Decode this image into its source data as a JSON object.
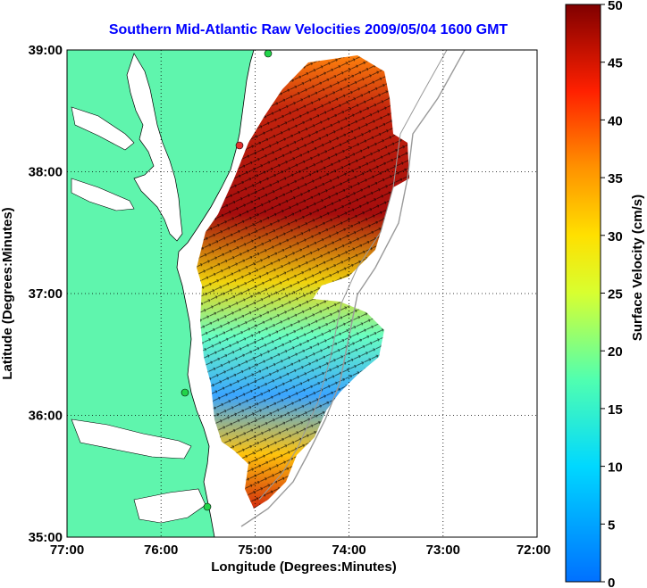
{
  "title": "Southern Mid-Atlantic Raw Velocities 2009/05/04 1600 GMT",
  "x_axis": {
    "label": "Longitude (Degrees:Minutes)",
    "ticks": [
      "77:00",
      "76:00",
      "75:00",
      "74:00",
      "73:00",
      "72:00"
    ]
  },
  "y_axis": {
    "label": "Latitude (Degrees:Minutes)",
    "ticks": [
      "39:00",
      "38:00",
      "37:00",
      "36:00",
      "35:00"
    ]
  },
  "colorbar": {
    "label": "Surface Velocity (cm/s)",
    "ticks": [
      "50",
      "45",
      "40",
      "35",
      "30",
      "25",
      "20",
      "15",
      "10",
      "5",
      "0"
    ],
    "min": 0,
    "max": 50
  },
  "colors": {
    "land": "#5ff5ad",
    "ocean": "#ffffff",
    "title": "#0000ff",
    "site_marker": "#22d44a",
    "site_marker_red": "#e53030",
    "contour": "#9a9a9a"
  },
  "map_extent": {
    "lon_min": -77,
    "lon_max": -72,
    "lat_min": 35,
    "lat_max": 39
  }
}
